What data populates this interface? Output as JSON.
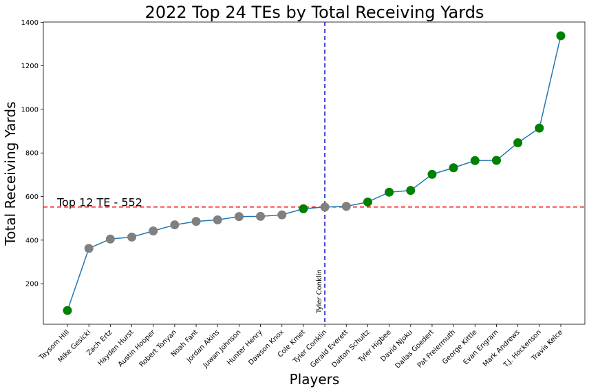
{
  "chart_data": {
    "type": "line",
    "title": "2022 Top 24 TEs by Total Receiving Yards",
    "xlabel": "Players",
    "ylabel": "Total Receiving Yards",
    "categories": [
      "Taysom Hill",
      "Mike Gesicki",
      "Zach Ertz",
      "Hayden Hurst",
      "Austin Hooper",
      "Robert Tonyan",
      "Noah Fant",
      "Jordan Akins",
      "Juwan Johnson",
      "Hunter Henry",
      "Dawson Knox",
      "Cole Kmet",
      "Tyler Conklin",
      "Gerald Everett",
      "Dalton Schultz",
      "Tyler Higbee",
      "David Njoku",
      "Dallas Goedert",
      "Pat Freiermuth",
      "George Kittle",
      "Evan Engram",
      "Mark Andrews",
      "T.J. Hockenson",
      "Travis Kelce"
    ],
    "series": [
      {
        "values": [
          77,
          362,
          405,
          414,
          442,
          470,
          486,
          493,
          508,
          509,
          516,
          544,
          552,
          555,
          575,
          620,
          628,
          702,
          732,
          765,
          766,
          847,
          914,
          1338
        ]
      }
    ],
    "point_colors": [
      "#008000",
      "#808080",
      "#808080",
      "#808080",
      "#808080",
      "#808080",
      "#808080",
      "#808080",
      "#808080",
      "#808080",
      "#808080",
      "#008000",
      "#808080",
      "#808080",
      "#008000",
      "#008000",
      "#008000",
      "#008000",
      "#008000",
      "#008000",
      "#008000",
      "#008000",
      "#008000",
      "#008000"
    ],
    "line_color": "#1f77b4",
    "yticks": [
      200,
      400,
      600,
      800,
      1000,
      1200,
      1400
    ],
    "ylim": [
      14,
      1401
    ],
    "grid": false,
    "reference_lines": {
      "horizontal": {
        "value": 552,
        "label": "Top 12 TE - 552",
        "color": "#ff0000"
      },
      "vertical": {
        "category": "Tyler Conklin",
        "label": "Tyler Conklin",
        "color": "#0000cc"
      }
    }
  }
}
